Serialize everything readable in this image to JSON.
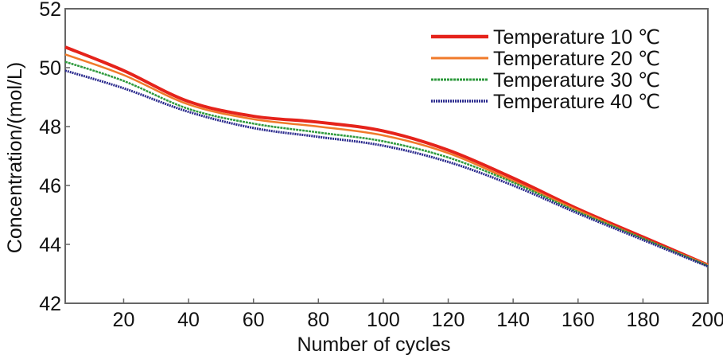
{
  "chart_data": {
    "type": "line",
    "title": "",
    "xlabel": "Number of cycles",
    "ylabel": "Concentration/(mol/L)",
    "xlim": [
      2,
      200
    ],
    "ylim": [
      42,
      52
    ],
    "xticks": [
      20,
      40,
      60,
      80,
      100,
      120,
      140,
      160,
      180,
      200
    ],
    "yticks": [
      42,
      44,
      46,
      48,
      50,
      52
    ],
    "grid": false,
    "legend_position": "top-right",
    "x": [
      2,
      20,
      40,
      60,
      80,
      100,
      120,
      140,
      160,
      180,
      200
    ],
    "series": [
      {
        "name": "Temperature 10 ℃",
        "color": "#e5231b",
        "values": [
          50.7,
          49.9,
          48.85,
          48.35,
          48.15,
          47.85,
          47.2,
          46.25,
          45.2,
          44.25,
          43.3
        ]
      },
      {
        "name": "Temperature 20 ℃",
        "color": "#f07a2a",
        "values": [
          50.45,
          49.75,
          48.75,
          48.25,
          48.0,
          47.7,
          47.1,
          46.15,
          45.15,
          44.2,
          43.3
        ]
      },
      {
        "name": "Temperature 30 ℃",
        "color": "#2e9a3c",
        "values": [
          50.2,
          49.55,
          48.6,
          48.1,
          47.8,
          47.5,
          46.95,
          46.1,
          45.1,
          44.2,
          43.27
        ]
      },
      {
        "name": "Temperature 40 ℃",
        "color": "#2b2b8e",
        "values": [
          49.9,
          49.3,
          48.5,
          47.95,
          47.65,
          47.35,
          46.8,
          46.0,
          45.05,
          44.15,
          43.25
        ]
      }
    ]
  }
}
